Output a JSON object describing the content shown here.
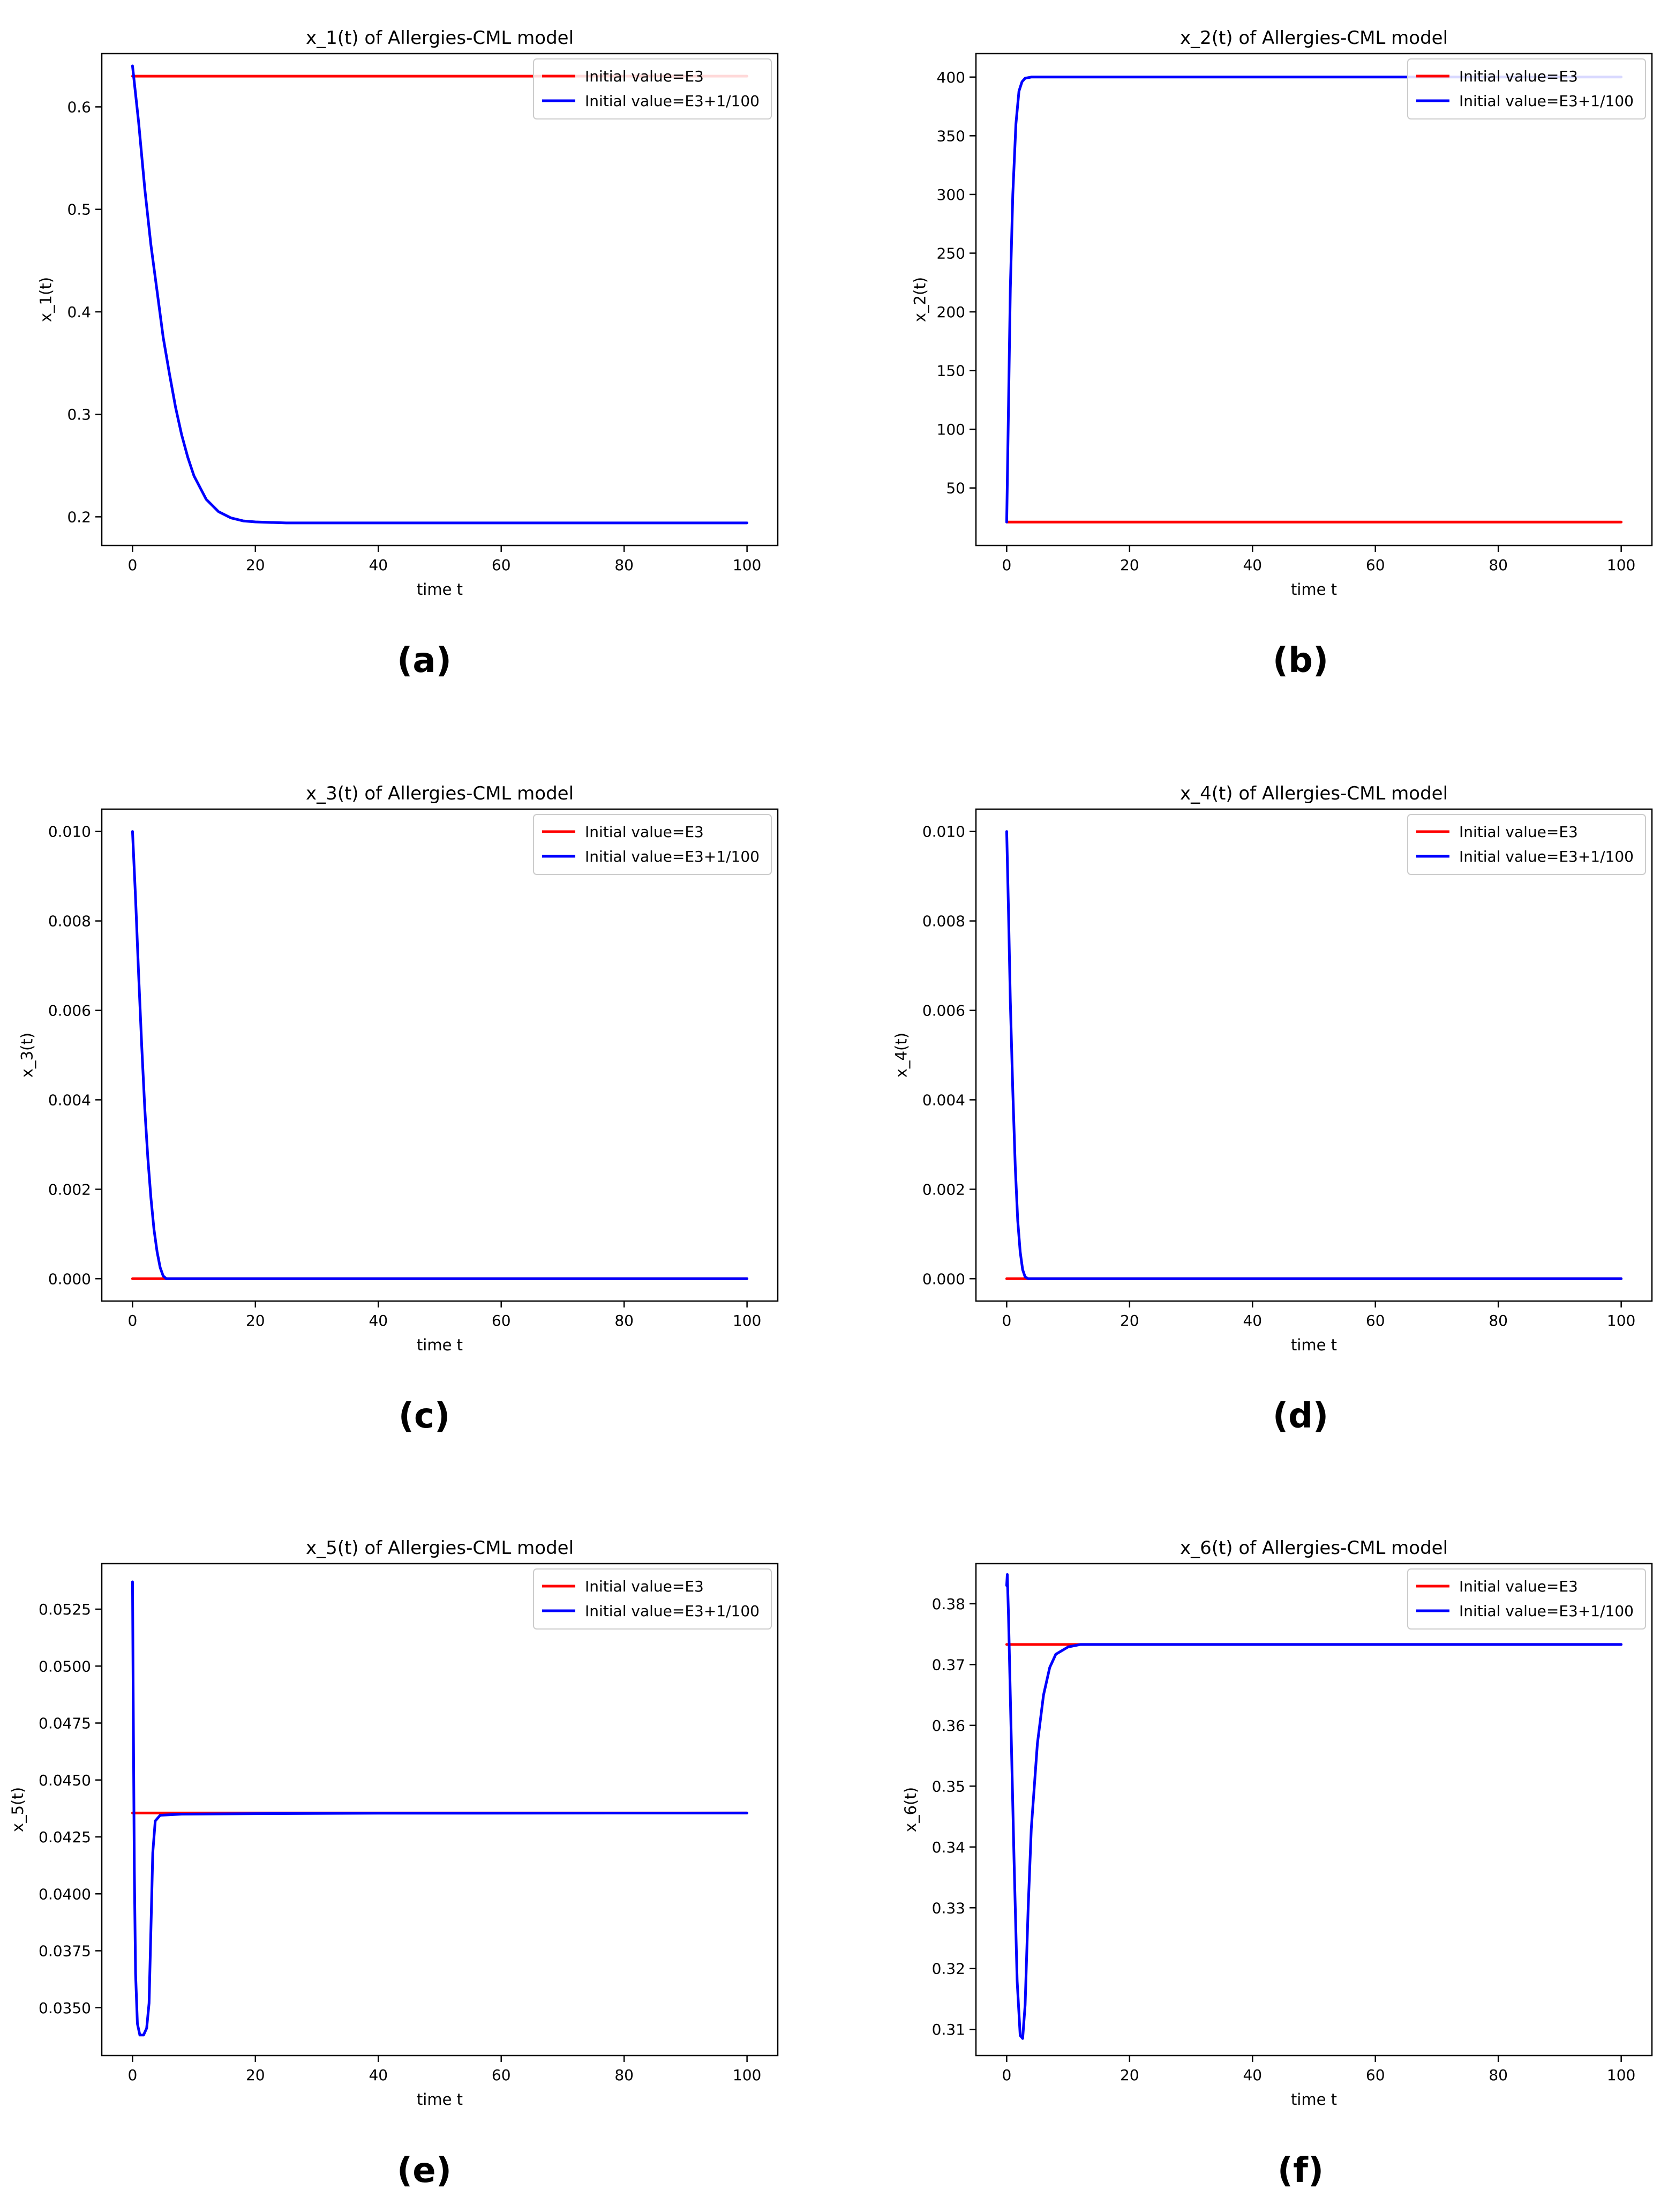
{
  "colors": {
    "series_red": "#ff0000",
    "series_blue": "#0000ff",
    "axis": "#000000",
    "background": "#ffffff"
  },
  "captions": [
    "(a)",
    "(b)",
    "(c)",
    "(d)",
    "(e)",
    "(f)"
  ],
  "chart_data": [
    {
      "type": "line",
      "title": "x_1(t) of Allergies-CML model",
      "xlabel": "time t",
      "ylabel": "x_1(t)",
      "xlim": [
        -5,
        105
      ],
      "ylim": [
        0.172,
        0.652
      ],
      "xticks": [
        0,
        20,
        40,
        60,
        80,
        100
      ],
      "xtick_labels": [
        "0",
        "20",
        "40",
        "60",
        "80",
        "100"
      ],
      "yticks": [
        0.2,
        0.3,
        0.4,
        0.5,
        0.6
      ],
      "ytick_labels": [
        "0.2",
        "0.3",
        "0.4",
        "0.5",
        "0.6"
      ],
      "grid": false,
      "legend_position": "top-right",
      "series": [
        {
          "name": "Initial value=E3",
          "color": "#ff0000",
          "points": [
            [
              0,
              0.63
            ],
            [
              100,
              0.63
            ]
          ]
        },
        {
          "name": "Initial value=E3+1/100",
          "color": "#0000ff",
          "points": [
            [
              0,
              0.64
            ],
            [
              1,
              0.585
            ],
            [
              2,
              0.52
            ],
            [
              3,
              0.465
            ],
            [
              4,
              0.42
            ],
            [
              5,
              0.375
            ],
            [
              6,
              0.34
            ],
            [
              7,
              0.307
            ],
            [
              8,
              0.28
            ],
            [
              9,
              0.258
            ],
            [
              10,
              0.24
            ],
            [
              12,
              0.217
            ],
            [
              14,
              0.205
            ],
            [
              16,
              0.199
            ],
            [
              18,
              0.196
            ],
            [
              20,
              0.195
            ],
            [
              25,
              0.194
            ],
            [
              30,
              0.194
            ],
            [
              100,
              0.194
            ]
          ]
        }
      ]
    },
    {
      "type": "line",
      "title": "x_2(t) of Allergies-CML model",
      "xlabel": "time t",
      "ylabel": "x_2(t)",
      "xlim": [
        -5,
        105
      ],
      "ylim": [
        1,
        420
      ],
      "xticks": [
        0,
        20,
        40,
        60,
        80,
        100
      ],
      "xtick_labels": [
        "0",
        "20",
        "40",
        "60",
        "80",
        "100"
      ],
      "yticks": [
        50,
        100,
        150,
        200,
        250,
        300,
        350,
        400
      ],
      "ytick_labels": [
        "50",
        "100",
        "150",
        "200",
        "250",
        "300",
        "350",
        "400"
      ],
      "grid": false,
      "legend_position": "top-right",
      "series": [
        {
          "name": "Initial value=E3",
          "color": "#ff0000",
          "points": [
            [
              0,
              21
            ],
            [
              100,
              21
            ]
          ]
        },
        {
          "name": "Initial value=E3+1/100",
          "color": "#0000ff",
          "points": [
            [
              0,
              21
            ],
            [
              0.3,
              120
            ],
            [
              0.6,
              220
            ],
            [
              1,
              300
            ],
            [
              1.5,
              360
            ],
            [
              2,
              388
            ],
            [
              2.5,
              396
            ],
            [
              3,
              399
            ],
            [
              4,
              400
            ],
            [
              100,
              400
            ]
          ]
        }
      ]
    },
    {
      "type": "line",
      "title": "x_3(t) of Allergies-CML model",
      "xlabel": "time t",
      "ylabel": "x_3(t)",
      "xlim": [
        -5,
        105
      ],
      "ylim": [
        -0.0005,
        0.0105
      ],
      "xticks": [
        0,
        20,
        40,
        60,
        80,
        100
      ],
      "xtick_labels": [
        "0",
        "20",
        "40",
        "60",
        "80",
        "100"
      ],
      "yticks": [
        0.0,
        0.002,
        0.004,
        0.006,
        0.008,
        0.01
      ],
      "ytick_labels": [
        "0.000",
        "0.002",
        "0.004",
        "0.006",
        "0.008",
        "0.010"
      ],
      "grid": false,
      "legend_position": "top-right",
      "series": [
        {
          "name": "Initial value=E3",
          "color": "#ff0000",
          "points": [
            [
              0,
              0
            ],
            [
              100,
              0
            ]
          ]
        },
        {
          "name": "Initial value=E3+1/100",
          "color": "#0000ff",
          "points": [
            [
              0,
              0.01
            ],
            [
              0.5,
              0.0085
            ],
            [
              1,
              0.0068
            ],
            [
              1.5,
              0.0052
            ],
            [
              2,
              0.0038
            ],
            [
              2.5,
              0.0027
            ],
            [
              3,
              0.0018
            ],
            [
              3.5,
              0.0011
            ],
            [
              4,
              0.0006
            ],
            [
              4.5,
              0.00025
            ],
            [
              5,
              6e-05
            ],
            [
              5.5,
              0.0
            ],
            [
              100,
              0.0
            ]
          ]
        }
      ]
    },
    {
      "type": "line",
      "title": "x_4(t) of Allergies-CML model",
      "xlabel": "time t",
      "ylabel": "x_4(t)",
      "xlim": [
        -5,
        105
      ],
      "ylim": [
        -0.0005,
        0.0105
      ],
      "xticks": [
        0,
        20,
        40,
        60,
        80,
        100
      ],
      "xtick_labels": [
        "0",
        "20",
        "40",
        "60",
        "80",
        "100"
      ],
      "yticks": [
        0.0,
        0.002,
        0.004,
        0.006,
        0.008,
        0.01
      ],
      "ytick_labels": [
        "0.000",
        "0.002",
        "0.004",
        "0.006",
        "0.008",
        "0.010"
      ],
      "grid": false,
      "legend_position": "top-right",
      "series": [
        {
          "name": "Initial value=E3",
          "color": "#ff0000",
          "points": [
            [
              0,
              0
            ],
            [
              100,
              0
            ]
          ]
        },
        {
          "name": "Initial value=E3+1/100",
          "color": "#0000ff",
          "points": [
            [
              0,
              0.01
            ],
            [
              0.3,
              0.0082
            ],
            [
              0.6,
              0.0062
            ],
            [
              1,
              0.0042
            ],
            [
              1.4,
              0.0025
            ],
            [
              1.8,
              0.0013
            ],
            [
              2.2,
              0.0006
            ],
            [
              2.6,
              0.0002
            ],
            [
              3,
              4e-05
            ],
            [
              3.5,
              0.0
            ],
            [
              100,
              0.0
            ]
          ]
        }
      ]
    },
    {
      "type": "line",
      "title": "x_5(t) of Allergies-CML model",
      "xlabel": "time t",
      "ylabel": "x_5(t)",
      "xlim": [
        -5,
        105
      ],
      "ylim": [
        0.0329,
        0.0545
      ],
      "xticks": [
        0,
        20,
        40,
        60,
        80,
        100
      ],
      "xtick_labels": [
        "0",
        "20",
        "40",
        "60",
        "80",
        "100"
      ],
      "yticks": [
        0.035,
        0.0375,
        0.04,
        0.0425,
        0.045,
        0.0475,
        0.05,
        0.0525
      ],
      "ytick_labels": [
        "0.0350",
        "0.0375",
        "0.0400",
        "0.0425",
        "0.0450",
        "0.0475",
        "0.0500",
        "0.0525"
      ],
      "grid": false,
      "legend_position": "top-right",
      "series": [
        {
          "name": "Initial value=E3",
          "color": "#ff0000",
          "points": [
            [
              0,
              0.04355
            ],
            [
              100,
              0.04355
            ]
          ]
        },
        {
          "name": "Initial value=E3+1/100",
          "color": "#0000ff",
          "points": [
            [
              0,
              0.0537
            ],
            [
              0.15,
              0.047
            ],
            [
              0.3,
              0.041
            ],
            [
              0.5,
              0.0365
            ],
            [
              0.8,
              0.0343
            ],
            [
              1.2,
              0.0338
            ],
            [
              1.8,
              0.0338
            ],
            [
              2.3,
              0.0341
            ],
            [
              2.7,
              0.0352
            ],
            [
              3,
              0.0385
            ],
            [
              3.3,
              0.0418
            ],
            [
              3.7,
              0.0432
            ],
            [
              4.5,
              0.04345
            ],
            [
              8,
              0.0435
            ],
            [
              20,
              0.04352
            ],
            [
              40,
              0.04354
            ],
            [
              100,
              0.04355
            ]
          ]
        }
      ]
    },
    {
      "type": "line",
      "title": "x_6(t) of Allergies-CML model",
      "xlabel": "time t",
      "ylabel": "x_6(t)",
      "xlim": [
        -5,
        105
      ],
      "ylim": [
        0.3057,
        0.3866
      ],
      "xticks": [
        0,
        20,
        40,
        60,
        80,
        100
      ],
      "xtick_labels": [
        "0",
        "20",
        "40",
        "60",
        "80",
        "100"
      ],
      "yticks": [
        0.31,
        0.32,
        0.33,
        0.34,
        0.35,
        0.36,
        0.37,
        0.38
      ],
      "ytick_labels": [
        "0.31",
        "0.32",
        "0.33",
        "0.34",
        "0.35",
        "0.36",
        "0.37",
        "0.38"
      ],
      "grid": false,
      "legend_position": "top-right",
      "series": [
        {
          "name": "Initial value=E3",
          "color": "#ff0000",
          "points": [
            [
              0,
              0.3733
            ],
            [
              100,
              0.3733
            ]
          ]
        },
        {
          "name": "Initial value=E3+1/100",
          "color": "#0000ff",
          "points": [
            [
              0,
              0.383
            ],
            [
              0.1,
              0.3848
            ],
            [
              0.3,
              0.378
            ],
            [
              0.7,
              0.36
            ],
            [
              1.2,
              0.338
            ],
            [
              1.7,
              0.318
            ],
            [
              2.2,
              0.309
            ],
            [
              2.6,
              0.3085
            ],
            [
              3,
              0.314
            ],
            [
              3.5,
              0.33
            ],
            [
              4,
              0.343
            ],
            [
              5,
              0.357
            ],
            [
              6,
              0.365
            ],
            [
              7,
              0.3695
            ],
            [
              8,
              0.3717
            ],
            [
              10,
              0.3729
            ],
            [
              12,
              0.3733
            ],
            [
              100,
              0.3733
            ]
          ]
        }
      ]
    }
  ]
}
